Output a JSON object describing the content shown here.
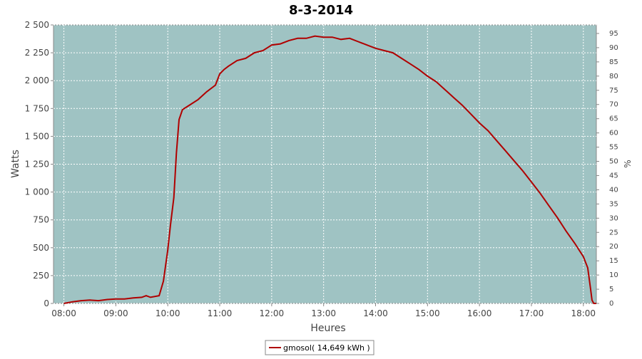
{
  "chart_data": {
    "type": "line",
    "title": "8-3-2014",
    "xlabel": "Heures",
    "ylabel": "Watts",
    "y2label": "%",
    "x": [
      "08:00",
      "08:10",
      "08:20",
      "08:30",
      "08:40",
      "08:50",
      "09:00",
      "09:10",
      "09:20",
      "09:30",
      "09:35",
      "09:40",
      "09:50",
      "09:55",
      "10:00",
      "10:03",
      "10:07",
      "10:10",
      "10:13",
      "10:17",
      "10:25",
      "10:35",
      "10:45",
      "10:55",
      "11:00",
      "11:05",
      "11:10",
      "11:20",
      "11:30",
      "11:40",
      "11:50",
      "12:00",
      "12:10",
      "12:20",
      "12:30",
      "12:40",
      "12:50",
      "13:00",
      "13:10",
      "13:20",
      "13:30",
      "13:40",
      "13:50",
      "14:00",
      "14:10",
      "14:20",
      "14:30",
      "14:40",
      "14:50",
      "15:00",
      "15:10",
      "15:20",
      "15:30",
      "15:40",
      "15:50",
      "16:00",
      "16:10",
      "16:20",
      "16:30",
      "16:40",
      "16:50",
      "17:00",
      "17:10",
      "17:20",
      "17:30",
      "17:40",
      "17:50",
      "18:00",
      "18:05",
      "18:08",
      "18:10",
      "18:12",
      "18:15"
    ],
    "series": [
      {
        "name": "gmosol( 14,649 kWh )",
        "color": "#b00000",
        "values": [
          0,
          15,
          25,
          30,
          25,
          35,
          40,
          40,
          50,
          55,
          70,
          55,
          70,
          200,
          480,
          700,
          950,
          1350,
          1650,
          1740,
          1780,
          1830,
          1900,
          1960,
          2060,
          2100,
          2130,
          2180,
          2200,
          2250,
          2270,
          2320,
          2330,
          2360,
          2380,
          2380,
          2400,
          2390,
          2390,
          2370,
          2380,
          2350,
          2320,
          2290,
          2270,
          2250,
          2200,
          2150,
          2100,
          2040,
          1990,
          1920,
          1850,
          1780,
          1700,
          1620,
          1550,
          1460,
          1370,
          1280,
          1190,
          1090,
          990,
          880,
          770,
          650,
          540,
          420,
          320,
          150,
          30,
          0,
          0
        ]
      }
    ],
    "xlim": [
      "07:48",
      "18:15"
    ],
    "xticks": [
      "08:00",
      "09:00",
      "10:00",
      "11:00",
      "12:00",
      "13:00",
      "14:00",
      "15:00",
      "16:00",
      "17:00",
      "18:00"
    ],
    "ylim": [
      0,
      2500
    ],
    "yticks": [
      0,
      250,
      500,
      750,
      {
        "value": 1000,
        "label": "1 000"
      },
      {
        "value": 1250,
        "label": "1 250"
      },
      {
        "value": 1500,
        "label": "1 500"
      },
      {
        "value": 1750,
        "label": "1 750"
      },
      {
        "value": 2000,
        "label": "2 000"
      },
      {
        "value": 2250,
        "label": "2 250"
      },
      {
        "value": 2500,
        "label": "2 500"
      }
    ],
    "y2lim": [
      0,
      98
    ],
    "y2ticks": [
      0,
      5,
      10,
      15,
      20,
      25,
      30,
      35,
      40,
      45,
      50,
      55,
      60,
      65,
      70,
      75,
      80,
      85,
      90,
      95
    ],
    "grid": true,
    "legend": "bottom"
  }
}
